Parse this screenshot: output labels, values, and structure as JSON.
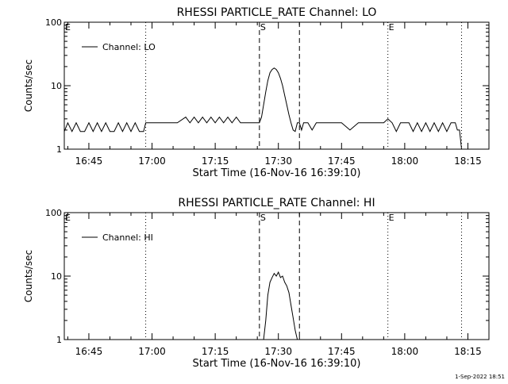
{
  "footer_timestamp": "1-Sep-2022 18:51",
  "colors": {
    "background": "#ffffff",
    "foreground": "#000000"
  },
  "chart_data": [
    {
      "type": "line",
      "title": "RHESSI PARTICLE_RATE Channel: LO",
      "xlabel": "Start Time (16-Nov-16 16:39:10)",
      "ylabel": "Counts/sec",
      "y_scale": "log",
      "ylim": [
        1,
        100
      ],
      "y_ticks": [
        1,
        10,
        100
      ],
      "y_tick_labels": [
        "1",
        "10",
        "100"
      ],
      "xlim": [
        "16:39:10",
        "18:20:00"
      ],
      "x_ticks": [
        "16:45",
        "17:00",
        "17:15",
        "17:30",
        "17:45",
        "18:00",
        "18:15"
      ],
      "grid": false,
      "legend": {
        "position": "top-left",
        "entries": [
          "Channel: LO"
        ]
      },
      "markers": [
        {
          "time": "16:39:10",
          "style": "dotted",
          "label": "E"
        },
        {
          "time": "16:58:30",
          "style": "dotted",
          "label": ""
        },
        {
          "time": "17:25:30",
          "style": "dashed",
          "label": "S"
        },
        {
          "time": "17:35:00",
          "style": "dashed",
          "label": ""
        },
        {
          "time": "17:56:00",
          "style": "dotted",
          "label": "E"
        },
        {
          "time": "18:13:30",
          "style": "dotted",
          "label": ""
        }
      ],
      "series": [
        {
          "name": "Channel: LO",
          "x": [
            "16:39:10",
            "16:40:00",
            "16:41:00",
            "16:42:00",
            "16:43:00",
            "16:44:00",
            "16:45:00",
            "16:46:00",
            "16:47:00",
            "16:48:00",
            "16:49:00",
            "16:50:00",
            "16:51:00",
            "16:52:00",
            "16:53:00",
            "16:54:00",
            "16:55:00",
            "16:56:00",
            "16:57:00",
            "16:58:00",
            "16:58:30",
            "17:00:00",
            "17:02:00",
            "17:04:00",
            "17:06:00",
            "17:08:00",
            "17:09:00",
            "17:10:00",
            "17:11:00",
            "17:12:00",
            "17:13:00",
            "17:14:00",
            "17:15:00",
            "17:16:00",
            "17:17:00",
            "17:18:00",
            "17:19:00",
            "17:20:00",
            "17:21:00",
            "17:22:00",
            "17:23:00",
            "17:24:00",
            "17:25:00",
            "17:25:30",
            "17:26:00",
            "17:26:30",
            "17:27:00",
            "17:27:30",
            "17:28:00",
            "17:28:30",
            "17:29:00",
            "17:29:30",
            "17:30:00",
            "17:30:30",
            "17:31:00",
            "17:31:30",
            "17:32:00",
            "17:32:30",
            "17:33:00",
            "17:33:30",
            "17:34:00",
            "17:34:30",
            "17:35:00",
            "17:35:30",
            "17:36:00",
            "17:37:00",
            "17:38:00",
            "17:39:00",
            "17:40:00",
            "17:41:00",
            "17:42:00",
            "17:43:00",
            "17:45:00",
            "17:47:00",
            "17:49:00",
            "17:51:00",
            "17:53:00",
            "17:55:00",
            "17:56:00",
            "17:57:00",
            "17:58:00",
            "17:59:00",
            "18:00:00",
            "18:01:00",
            "18:02:00",
            "18:03:00",
            "18:04:00",
            "18:05:00",
            "18:06:00",
            "18:07:00",
            "18:08:00",
            "18:09:00",
            "18:10:00",
            "18:11:00",
            "18:12:00",
            "18:12:30",
            "18:13:00",
            "18:13:30"
          ],
          "y": [
            1.9,
            2.6,
            1.9,
            2.6,
            1.9,
            1.9,
            2.6,
            1.9,
            2.6,
            1.9,
            2.6,
            1.9,
            1.9,
            2.6,
            1.9,
            2.6,
            1.9,
            2.6,
            1.9,
            1.9,
            2.6,
            2.6,
            2.6,
            2.6,
            2.6,
            3.2,
            2.6,
            3.2,
            2.6,
            3.2,
            2.6,
            3.2,
            2.6,
            3.2,
            2.6,
            3.2,
            2.6,
            3.2,
            2.6,
            2.6,
            2.6,
            2.6,
            2.6,
            2.6,
            3.2,
            5.0,
            8.0,
            12.0,
            16.0,
            18.0,
            19.0,
            18.0,
            16.0,
            13.0,
            10.0,
            7.0,
            5.0,
            3.5,
            2.6,
            2.0,
            1.9,
            2.6,
            2.6,
            2.0,
            2.6,
            2.6,
            2.0,
            2.6,
            2.6,
            2.6,
            2.6,
            2.6,
            2.6,
            2.0,
            2.6,
            2.6,
            2.6,
            2.6,
            3.0,
            2.6,
            1.9,
            2.6,
            2.6,
            2.6,
            1.9,
            2.6,
            1.9,
            2.6,
            1.9,
            2.6,
            1.9,
            2.6,
            1.9,
            2.6,
            2.6,
            2.0,
            2.0,
            1.0
          ]
        }
      ]
    },
    {
      "type": "line",
      "title": "RHESSI PARTICLE_RATE Channel: HI",
      "xlabel": "Start Time (16-Nov-16 16:39:10)",
      "ylabel": "Counts/sec",
      "y_scale": "log",
      "ylim": [
        1,
        100
      ],
      "y_ticks": [
        1,
        10,
        100
      ],
      "y_tick_labels": [
        "1",
        "10",
        "100"
      ],
      "xlim": [
        "16:39:10",
        "18:20:00"
      ],
      "x_ticks": [
        "16:45",
        "17:00",
        "17:15",
        "17:30",
        "17:45",
        "18:00",
        "18:15"
      ],
      "grid": false,
      "legend": {
        "position": "top-left",
        "entries": [
          "Channel: HI"
        ]
      },
      "markers": [
        {
          "time": "16:39:10",
          "style": "dotted",
          "label": "E"
        },
        {
          "time": "16:58:30",
          "style": "dotted",
          "label": ""
        },
        {
          "time": "17:25:30",
          "style": "dashed",
          "label": "S"
        },
        {
          "time": "17:35:00",
          "style": "dashed",
          "label": ""
        },
        {
          "time": "17:56:00",
          "style": "dotted",
          "label": "E"
        },
        {
          "time": "18:13:30",
          "style": "dotted",
          "label": ""
        }
      ],
      "series": [
        {
          "name": "Channel: HI",
          "x": [
            "17:26:30",
            "17:27:00",
            "17:27:30",
            "17:28:00",
            "17:28:30",
            "17:29:00",
            "17:29:30",
            "17:30:00",
            "17:30:30",
            "17:31:00",
            "17:31:30",
            "17:32:00",
            "17:32:30",
            "17:33:00",
            "17:33:30",
            "17:34:00",
            "17:34:30"
          ],
          "y": [
            1.0,
            2.0,
            5.0,
            8.0,
            9.5,
            11.0,
            10.0,
            11.5,
            9.5,
            10.0,
            8.0,
            7.0,
            5.5,
            3.5,
            2.2,
            1.4,
            1.0
          ]
        }
      ]
    }
  ]
}
